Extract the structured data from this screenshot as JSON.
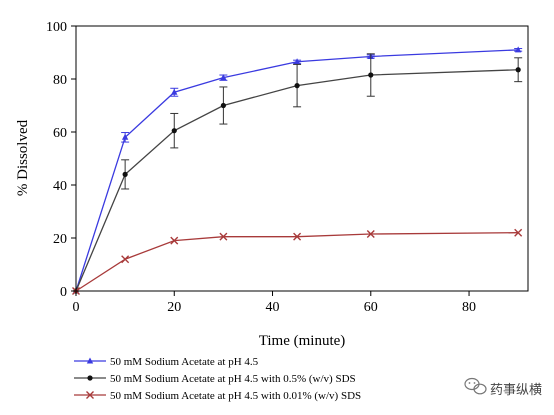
{
  "chart_data": {
    "type": "line",
    "title": "",
    "xlabel": "Time (minute)",
    "ylabel": "% Dissolved",
    "xlim": [
      0,
      92
    ],
    "ylim": [
      0,
      100
    ],
    "xticks": [
      0,
      20,
      40,
      60,
      80
    ],
    "yticks": [
      0,
      20,
      40,
      60,
      80,
      100
    ],
    "grid": false,
    "legend_position": "bottom",
    "x": [
      0,
      10,
      20,
      30,
      45,
      60,
      90
    ],
    "series": [
      {
        "name": "50 mM Sodium Acetate at pH 4.5",
        "color": "#3a3ae0",
        "marker": "triangle",
        "values": [
          0,
          58,
          75,
          80.5,
          86.5,
          88.5,
          91
        ],
        "errors": [
          0,
          1.8,
          1.5,
          1.0,
          0.6,
          0.6,
          0.5
        ]
      },
      {
        "name": "50 mM Sodium Acetate at pH 4.5 with 0.5% (w/v) SDS",
        "color": "#444444",
        "marker": "circle",
        "values": [
          0,
          44,
          60.5,
          70,
          77.5,
          81.5,
          83.5
        ],
        "errors": [
          0,
          5.5,
          6.5,
          7,
          8,
          8,
          4.5
        ]
      },
      {
        "name": "50 mM Sodium Acetate at pH 4.5 with 0.01% (w/v) SDS",
        "color": "#a83a3a",
        "marker": "x",
        "values": [
          0,
          12,
          19,
          20.5,
          20.5,
          21.5,
          22
        ],
        "errors": [
          0,
          0,
          0,
          0,
          0,
          0,
          0
        ]
      }
    ]
  },
  "watermark": {
    "label": "药事纵横",
    "icon": "wechat-icon"
  }
}
